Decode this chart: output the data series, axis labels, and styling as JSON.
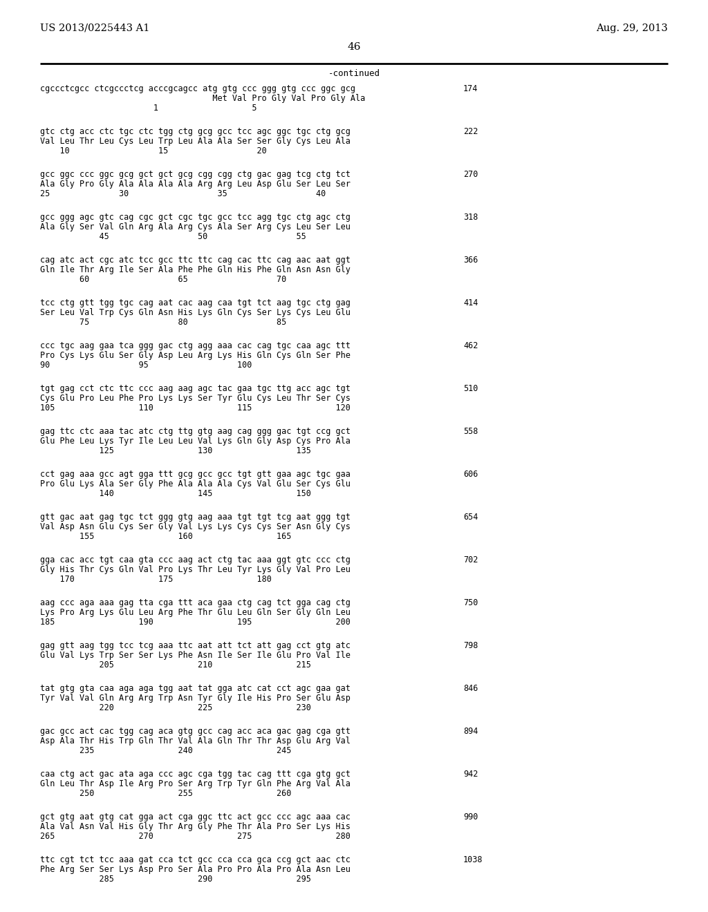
{
  "header_left": "US 2013/0225443 A1",
  "header_right": "Aug. 29, 2013",
  "page_number": "46",
  "continued_label": "-continued",
  "background_color": "#ffffff",
  "text_color": "#000000",
  "font_size_header": 11,
  "font_size_seq": 8.5,
  "sequences": [
    {
      "dna": "cgccctcgcc ctcgccctcg acccgcagcc atg gtg ccc ggg gtg ccc ggc gcg",
      "aa": "                                   Met Val Pro Gly Val Pro Gly Ala",
      "nums": "                       1                   5",
      "num_right": "174"
    },
    {
      "dna": "gtc ctg acc ctc tgc ctc tgg ctg gcg gcc tcc agc ggc tgc ctg gcg",
      "aa": "Val Leu Thr Leu Cys Leu Trp Leu Ala Ala Ser Ser Gly Cys Leu Ala",
      "nums": "    10                  15                  20",
      "num_right": "222"
    },
    {
      "dna": "gcc ggc ccc ggc gcg gct gct gcg cgg cgg ctg gac gag tcg ctg tct",
      "aa": "Ala Gly Pro Gly Ala Ala Ala Ala Arg Arg Leu Asp Glu Ser Leu Ser",
      "nums": "25              30                  35                  40",
      "num_right": "270"
    },
    {
      "dna": "gcc ggg agc gtc cag cgc gct cgc tgc gcc tcc agg tgc ctg agc ctg",
      "aa": "Ala Gly Ser Val Gln Arg Ala Arg Cys Ala Ser Arg Cys Leu Ser Leu",
      "nums": "            45                  50                  55",
      "num_right": "318"
    },
    {
      "dna": "cag atc act cgc atc tcc gcc ttc ttc cag cac ttc cag aac aat ggt",
      "aa": "Gln Ile Thr Arg Ile Ser Ala Phe Phe Gln His Phe Gln Asn Asn Gly",
      "nums": "        60                  65                  70",
      "num_right": "366"
    },
    {
      "dna": "tcc ctg gtt tgg tgc cag aat cac aag caa tgt tct aag tgc ctg gag",
      "aa": "Ser Leu Val Trp Cys Gln Asn His Lys Gln Cys Ser Lys Cys Leu Glu",
      "nums": "        75                  80                  85",
      "num_right": "414"
    },
    {
      "dna": "ccc tgc aag gaa tca ggg gac ctg agg aaa cac cag tgc caa agc ttt",
      "aa": "Pro Cys Lys Glu Ser Gly Asp Leu Arg Lys His Gln Cys Gln Ser Phe",
      "nums": "90                  95                  100",
      "num_right": "462"
    },
    {
      "dna": "tgt gag cct ctc ttc ccc aag aag agc tac gaa tgc ttg acc agc tgt",
      "aa": "Cys Glu Pro Leu Phe Pro Lys Lys Ser Tyr Glu Cys Leu Thr Ser Cys",
      "nums": "105                 110                 115                 120",
      "num_right": "510"
    },
    {
      "dna": "gag ttc ctc aaa tac atc ctg ttg gtg aag cag ggg gac tgt ccg gct",
      "aa": "Glu Phe Leu Lys Tyr Ile Leu Leu Val Lys Gln Gly Asp Cys Pro Ala",
      "nums": "            125                 130                 135",
      "num_right": "558"
    },
    {
      "dna": "cct gag aaa gcc agt gga ttt gcg gcc gcc tgt gtt gaa agc tgc gaa",
      "aa": "Pro Glu Lys Ala Ser Gly Phe Ala Ala Ala Cys Val Glu Ser Cys Glu",
      "nums": "            140                 145                 150",
      "num_right": "606"
    },
    {
      "dna": "gtt gac aat gag tgc tct ggg gtg aag aaa tgt tgt tcg aat ggg tgt",
      "aa": "Val Asp Asn Glu Cys Ser Gly Val Lys Lys Cys Cys Ser Asn Gly Cys",
      "nums": "        155                 160                 165",
      "num_right": "654"
    },
    {
      "dna": "gga cac acc tgt caa gta ccc aag act ctg tac aaa ggt gtc ccc ctg",
      "aa": "Gly His Thr Cys Gln Val Pro Lys Thr Leu Tyr Lys Gly Val Pro Leu",
      "nums": "    170                 175                 180",
      "num_right": "702"
    },
    {
      "dna": "aag ccc aga aaa gag tta cga ttt aca gaa ctg cag tct gga cag ctg",
      "aa": "Lys Pro Arg Lys Glu Leu Arg Phe Thr Glu Leu Gln Ser Gly Gln Leu",
      "nums": "185                 190                 195                 200",
      "num_right": "750"
    },
    {
      "dna": "gag gtt aag tgg tcc tcg aaa ttc aat att tct att gag cct gtg atc",
      "aa": "Glu Val Lys Trp Ser Ser Lys Phe Asn Ile Ser Ile Glu Pro Val Ile",
      "nums": "            205                 210                 215",
      "num_right": "798"
    },
    {
      "dna": "tat gtg gta caa aga aga tgg aat tat gga atc cat cct agc gaa gat",
      "aa": "Tyr Val Val Gln Arg Arg Trp Asn Tyr Gly Ile His Pro Ser Glu Asp",
      "nums": "            220                 225                 230",
      "num_right": "846"
    },
    {
      "dna": "gac gcc act cac tgg cag aca gtg gcc cag acc aca gac gag cga gtt",
      "aa": "Asp Ala Thr His Trp Gln Thr Val Ala Gln Thr Thr Asp Glu Arg Val",
      "nums": "        235                 240                 245",
      "num_right": "894"
    },
    {
      "dna": "caa ctg act gac ata aga ccc agc cga tgg tac cag ttt cga gtg gct",
      "aa": "Gln Leu Thr Asp Ile Arg Pro Ser Arg Trp Tyr Gln Phe Arg Val Ala",
      "nums": "        250                 255                 260",
      "num_right": "942"
    },
    {
      "dna": "gct gtg aat gtg cat gga act cga ggc ttc act gcc ccc agc aaa cac",
      "aa": "Ala Val Asn Val His Gly Thr Arg Gly Phe Thr Ala Pro Ser Lys His",
      "nums": "265                 270                 275                 280",
      "num_right": "990"
    },
    {
      "dna": "ttc cgt tct tcc aaa gat cca tct gcc cca cca gca ccg gct aac ctc",
      "aa": "Phe Arg Ser Ser Lys Asp Pro Ser Ala Pro Pro Ala Pro Ala Asn Leu",
      "nums": "            285                 290                 295",
      "num_right": "1038"
    }
  ]
}
